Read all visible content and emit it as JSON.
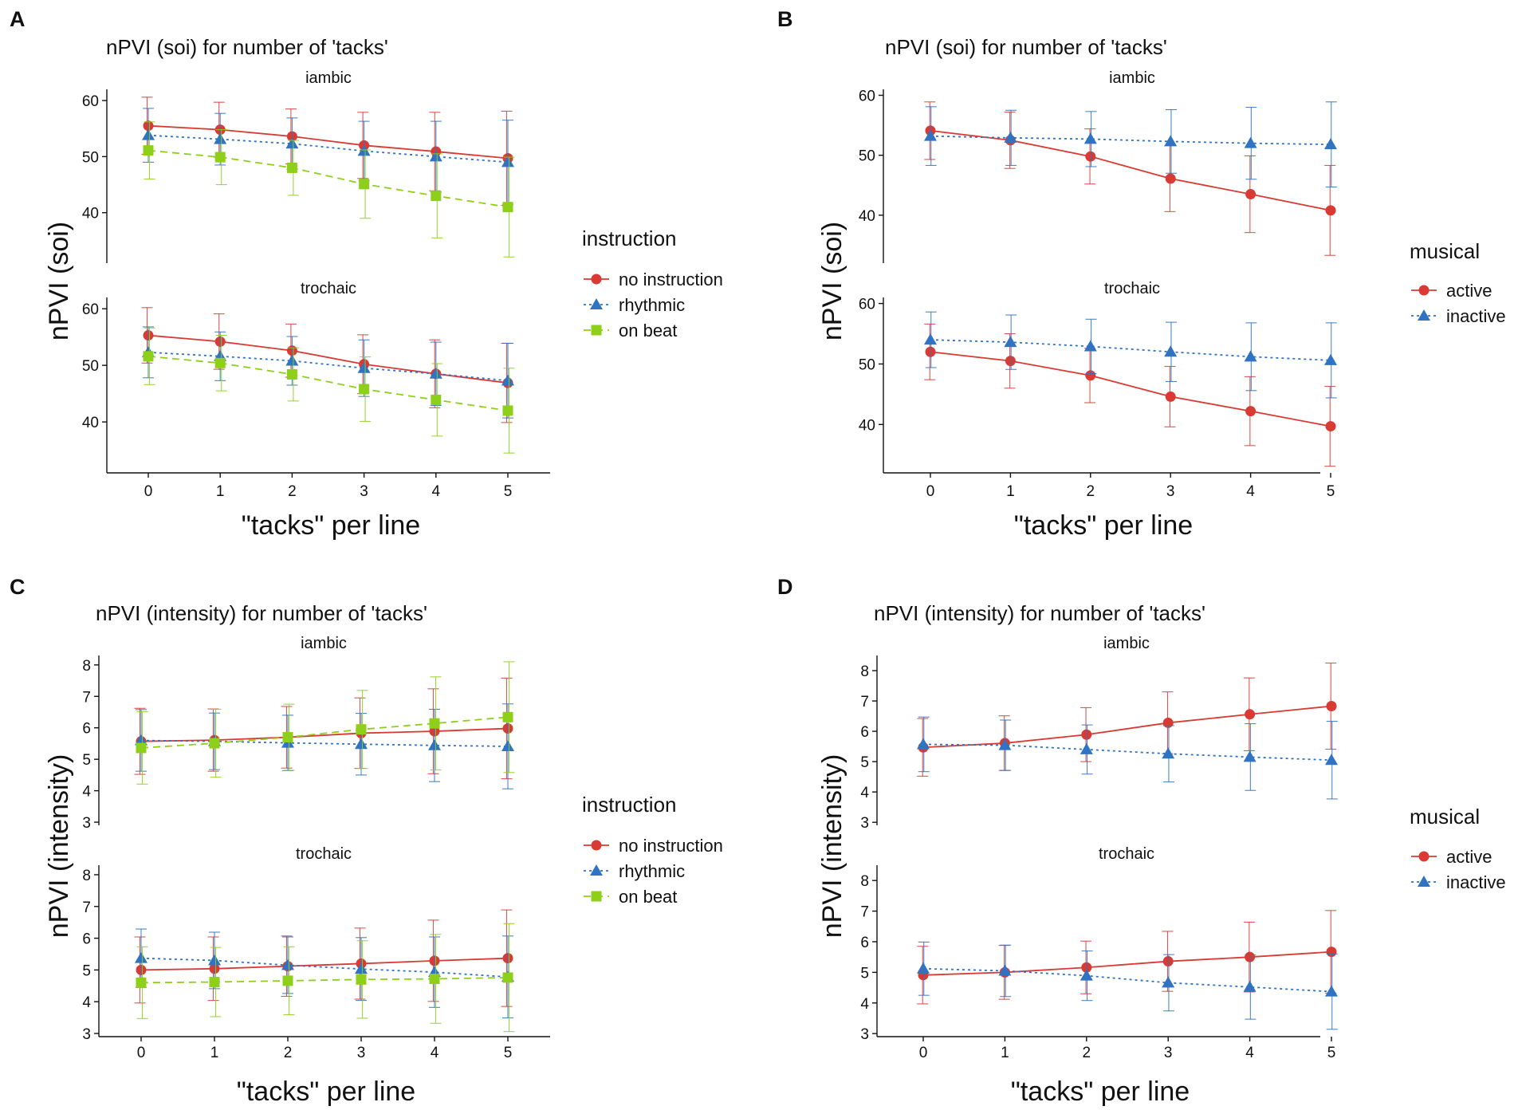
{
  "colors": {
    "active": "#d93a33",
    "inactive": "#2f73c2",
    "no_instruction": "#d93a33",
    "rhythmic": "#2f73c2",
    "on_beat": "#8ecf1a",
    "axis": "#111111"
  },
  "chart_data": [
    {
      "panel": "A",
      "type": "line",
      "title": "nPVI (soi) for number of 'tacks'",
      "xlabel": "\"tacks\" per line",
      "ylabel": "nPVI (soi)",
      "legend_title": "instruction",
      "legend_placement": "right",
      "x": [
        0,
        1,
        2,
        3,
        4,
        5
      ],
      "facets": [
        {
          "label": "iambic",
          "ylim": [
            31,
            62
          ],
          "yticks": [
            40,
            50,
            60
          ],
          "series": [
            {
              "name": "no instruction",
              "color_key": "no_instruction",
              "marker": "circle",
              "dash": "solid",
              "values": [
                55.5,
                54.8,
                53.6,
                52.0,
                50.9,
                49.7
              ],
              "err": [
                5.1,
                4.9,
                4.9,
                5.9,
                7.0,
                8.4
              ]
            },
            {
              "name": "rhythmic",
              "color_key": "rhythmic",
              "marker": "triangle",
              "dash": "dotted",
              "values": [
                53.8,
                53.1,
                52.3,
                51.0,
                50.0,
                49.0
              ],
              "err": [
                4.8,
                4.6,
                4.6,
                5.3,
                6.3,
                7.5
              ]
            },
            {
              "name": "on beat",
              "color_key": "on_beat",
              "marker": "square",
              "dash": "dashed",
              "values": [
                51.1,
                49.9,
                48.0,
                45.1,
                43.0,
                41.0
              ],
              "err": [
                5.1,
                4.9,
                4.9,
                6.1,
                7.5,
                8.9
              ]
            }
          ]
        },
        {
          "label": "trochaic",
          "ylim": [
            31,
            62
          ],
          "yticks": [
            40,
            50,
            60
          ],
          "series": [
            {
              "name": "no instruction",
              "color_key": "no_instruction",
              "marker": "circle",
              "dash": "solid",
              "values": [
                55.3,
                54.2,
                52.6,
                50.2,
                48.5,
                46.9
              ],
              "err": [
                4.9,
                4.9,
                4.7,
                5.2,
                6.0,
                7.0
              ]
            },
            {
              "name": "rhythmic",
              "color_key": "rhythmic",
              "marker": "triangle",
              "dash": "dotted",
              "values": [
                52.3,
                51.6,
                50.8,
                49.5,
                48.5,
                47.3
              ],
              "err": [
                4.5,
                4.3,
                4.3,
                5.0,
                5.6,
                6.6
              ]
            },
            {
              "name": "on beat",
              "color_key": "on_beat",
              "marker": "square",
              "dash": "dashed",
              "values": [
                51.6,
                50.4,
                48.4,
                45.8,
                43.9,
                42.0
              ],
              "err": [
                5.0,
                4.9,
                4.7,
                5.7,
                6.4,
                7.5
              ]
            }
          ]
        }
      ]
    },
    {
      "panel": "B",
      "type": "line",
      "title": "nPVI (soi) for number of 'tacks'",
      "xlabel": "\"tacks\" per line",
      "ylabel": "nPVI (soi)",
      "legend_title": "musical",
      "legend_placement": "right",
      "x": [
        0,
        1,
        2,
        3,
        4,
        5
      ],
      "facets": [
        {
          "label": "iambic",
          "ylim": [
            32,
            61
          ],
          "yticks": [
            40,
            50,
            60
          ],
          "series": [
            {
              "name": "active",
              "color_key": "active",
              "marker": "circle",
              "dash": "solid",
              "values": [
                54.1,
                52.5,
                49.8,
                46.1,
                43.5,
                40.8
              ],
              "err": [
                4.8,
                4.7,
                4.6,
                5.5,
                6.4,
                7.5
              ]
            },
            {
              "name": "inactive",
              "color_key": "inactive",
              "marker": "triangle",
              "dash": "dotted",
              "values": [
                53.2,
                52.9,
                52.7,
                52.3,
                52.0,
                51.8
              ],
              "err": [
                4.9,
                4.6,
                4.6,
                5.3,
                6.0,
                7.1
              ]
            }
          ]
        },
        {
          "label": "trochaic",
          "ylim": [
            32,
            61
          ],
          "yticks": [
            40,
            50,
            60
          ],
          "series": [
            {
              "name": "active",
              "color_key": "active",
              "marker": "circle",
              "dash": "solid",
              "values": [
                52.0,
                50.5,
                48.1,
                44.6,
                42.2,
                39.7
              ],
              "err": [
                4.6,
                4.5,
                4.5,
                5.0,
                5.7,
                6.6
              ]
            },
            {
              "name": "inactive",
              "color_key": "inactive",
              "marker": "triangle",
              "dash": "dotted",
              "values": [
                54.0,
                53.6,
                52.9,
                52.0,
                51.2,
                50.6
              ],
              "err": [
                4.6,
                4.5,
                4.5,
                4.9,
                5.6,
                6.2
              ]
            }
          ]
        }
      ]
    },
    {
      "panel": "C",
      "type": "line",
      "title": "nPVI (intensity) for number of 'tacks'",
      "xlabel": "\"tacks\" per line",
      "ylabel": "nPVI (intensity)",
      "legend_title": "instruction",
      "legend_placement": "right",
      "x": [
        0,
        1,
        2,
        3,
        4,
        5
      ],
      "facets": [
        {
          "label": "iambic",
          "ylim": [
            2.9,
            8.3
          ],
          "yticks": [
            3,
            4,
            5,
            6,
            7,
            8
          ],
          "series": [
            {
              "name": "no instruction",
              "color_key": "no_instruction",
              "marker": "circle",
              "dash": "solid",
              "values": [
                5.57,
                5.61,
                5.7,
                5.83,
                5.89,
                5.98
              ],
              "err": [
                1.05,
                0.99,
                0.98,
                1.12,
                1.35,
                1.6
              ]
            },
            {
              "name": "rhythmic",
              "color_key": "rhythmic",
              "marker": "triangle",
              "dash": "dotted",
              "values": [
                5.6,
                5.57,
                5.52,
                5.48,
                5.44,
                5.41
              ],
              "err": [
                0.98,
                0.9,
                0.88,
                0.98,
                1.15,
                1.35
              ]
            },
            {
              "name": "on beat",
              "color_key": "on_beat",
              "marker": "square",
              "dash": "dashed",
              "values": [
                5.36,
                5.51,
                5.7,
                5.95,
                6.14,
                6.34
              ],
              "err": [
                1.15,
                1.08,
                1.05,
                1.24,
                1.48,
                1.76
              ]
            }
          ]
        },
        {
          "label": "trochaic",
          "ylim": [
            2.9,
            8.3
          ],
          "yticks": [
            3,
            4,
            5,
            6,
            7,
            8
          ],
          "series": [
            {
              "name": "no instruction",
              "color_key": "no_instruction",
              "marker": "circle",
              "dash": "solid",
              "values": [
                5.0,
                5.04,
                5.12,
                5.2,
                5.29,
                5.37
              ],
              "err": [
                1.04,
                1.0,
                0.95,
                1.12,
                1.28,
                1.52
              ]
            },
            {
              "name": "rhythmic",
              "color_key": "rhythmic",
              "marker": "triangle",
              "dash": "dotted",
              "values": [
                5.37,
                5.3,
                5.15,
                5.03,
                4.93,
                4.78
              ],
              "err": [
                0.92,
                0.89,
                0.89,
                0.99,
                1.11,
                1.29
              ]
            },
            {
              "name": "on beat",
              "color_key": "on_beat",
              "marker": "square",
              "dash": "dashed",
              "values": [
                4.6,
                4.62,
                4.66,
                4.7,
                4.72,
                4.76
              ],
              "err": [
                1.13,
                1.09,
                1.07,
                1.22,
                1.4,
                1.7
              ]
            }
          ]
        }
      ]
    },
    {
      "panel": "D",
      "type": "line",
      "title": "nPVI (intensity) for number of 'tacks'",
      "xlabel": "\"tacks\" per line",
      "ylabel": "nPVI (intensity)",
      "legend_title": "musical",
      "legend_placement": "right",
      "x": [
        0,
        1,
        2,
        3,
        4,
        5
      ],
      "facets": [
        {
          "label": "iambic",
          "ylim": [
            2.9,
            8.5
          ],
          "yticks": [
            3,
            4,
            5,
            6,
            7,
            8
          ],
          "series": [
            {
              "name": "active",
              "color_key": "active",
              "marker": "circle",
              "dash": "solid",
              "values": [
                5.47,
                5.61,
                5.89,
                6.28,
                6.56,
                6.83
              ],
              "err": [
                0.95,
                0.9,
                0.89,
                1.02,
                1.2,
                1.42
              ]
            },
            {
              "name": "inactive",
              "color_key": "inactive",
              "marker": "triangle",
              "dash": "dotted",
              "values": [
                5.57,
                5.54,
                5.4,
                5.26,
                5.15,
                5.05
              ],
              "err": [
                0.9,
                0.83,
                0.81,
                0.93,
                1.1,
                1.28
              ]
            }
          ]
        },
        {
          "label": "trochaic",
          "ylim": [
            2.9,
            8.5
          ],
          "yticks": [
            3,
            4,
            5,
            6,
            7,
            8
          ],
          "series": [
            {
              "name": "active",
              "color_key": "active",
              "marker": "circle",
              "dash": "solid",
              "values": [
                4.91,
                5.0,
                5.16,
                5.36,
                5.5,
                5.67
              ],
              "err": [
                0.94,
                0.88,
                0.86,
                0.98,
                1.14,
                1.35
              ]
            },
            {
              "name": "inactive",
              "color_key": "inactive",
              "marker": "triangle",
              "dash": "dotted",
              "values": [
                5.12,
                5.05,
                4.89,
                4.66,
                4.52,
                4.37
              ],
              "err": [
                0.87,
                0.84,
                0.81,
                0.92,
                1.05,
                1.23
              ]
            }
          ]
        }
      ]
    }
  ]
}
